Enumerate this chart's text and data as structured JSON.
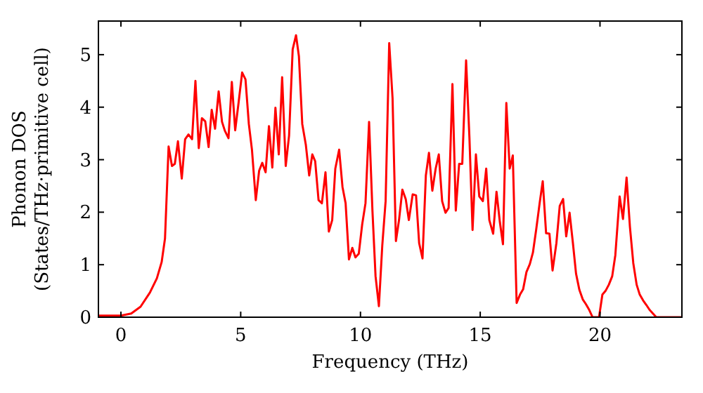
{
  "chart_data": {
    "type": "line",
    "xlabel": "Frequency (THz)",
    "ylabel": "Phonon DOS\n(States/THz·primitive cell)",
    "xlim": [
      -0.94,
      23.42
    ],
    "ylim": [
      0,
      5.64
    ],
    "xticks": [
      0,
      5,
      10,
      15,
      20
    ],
    "yticks": [
      0,
      1,
      2,
      3,
      4,
      5
    ],
    "grid": false,
    "marker": "none",
    "line_style": "solid",
    "series": [
      {
        "color": "#ff0000",
        "x": [
          -0.94,
          0,
          0.43,
          0.82,
          1.21,
          1.5,
          1.7,
          1.84,
          1.99,
          2.13,
          2.25,
          2.38,
          2.54,
          2.68,
          2.82,
          2.97,
          3.11,
          3.25,
          3.38,
          3.52,
          3.66,
          3.79,
          3.93,
          4.08,
          4.22,
          4.34,
          4.49,
          4.63,
          4.77,
          4.91,
          5.06,
          5.2,
          5.34,
          5.47,
          5.63,
          5.77,
          5.9,
          6.04,
          6.18,
          6.32,
          6.45,
          6.59,
          6.73,
          6.88,
          7.02,
          7.17,
          7.31,
          7.43,
          7.57,
          7.72,
          7.86,
          7.99,
          8.11,
          8.25,
          8.39,
          8.54,
          8.68,
          8.82,
          8.95,
          9.11,
          9.25,
          9.38,
          9.52,
          9.66,
          9.79,
          9.93,
          10.07,
          10.21,
          10.36,
          10.5,
          10.63,
          10.77,
          10.91,
          11.05,
          11.2,
          11.34,
          11.48,
          11.61,
          11.75,
          11.89,
          12.02,
          12.18,
          12.32,
          12.45,
          12.59,
          12.73,
          12.86,
          13.0,
          13.14,
          13.27,
          13.41,
          13.55,
          13.68,
          13.84,
          13.98,
          14.12,
          14.25,
          14.41,
          14.55,
          14.68,
          14.82,
          14.96,
          15.11,
          15.25,
          15.38,
          15.54,
          15.68,
          15.82,
          15.95,
          16.09,
          16.23,
          16.36,
          16.52,
          16.66,
          16.79,
          16.93,
          17.07,
          17.2,
          17.34,
          17.48,
          17.61,
          17.75,
          17.89,
          18.02,
          18.18,
          18.32,
          18.46,
          18.59,
          18.73,
          18.87,
          19.0,
          19.14,
          19.28,
          19.41,
          19.55,
          19.69,
          19.96,
          20.1,
          20.23,
          20.37,
          20.51,
          20.64,
          20.82,
          20.96,
          21.11,
          21.25,
          21.39,
          21.53,
          21.66,
          21.8,
          21.94,
          22.07,
          22.21,
          22.35,
          23.42
        ],
        "values": [
          0.03,
          0.03,
          0.07,
          0.2,
          0.47,
          0.74,
          1.05,
          1.5,
          3.25,
          2.88,
          2.92,
          3.35,
          2.64,
          3.39,
          3.48,
          3.39,
          4.5,
          3.22,
          3.79,
          3.73,
          3.24,
          3.95,
          3.59,
          4.3,
          3.72,
          3.55,
          3.41,
          4.48,
          3.56,
          4.08,
          4.66,
          4.53,
          3.68,
          3.19,
          2.23,
          2.79,
          2.94,
          2.76,
          3.64,
          2.85,
          3.99,
          3.1,
          4.57,
          2.88,
          3.46,
          5.1,
          5.37,
          4.97,
          3.68,
          3.28,
          2.7,
          3.1,
          2.97,
          2.23,
          2.17,
          2.76,
          1.63,
          1.85,
          2.83,
          3.19,
          2.48,
          2.17,
          1.1,
          1.32,
          1.14,
          1.21,
          1.76,
          2.17,
          3.72,
          2.03,
          0.78,
          0.21,
          1.36,
          2.21,
          5.22,
          4.17,
          1.45,
          1.85,
          2.43,
          2.25,
          1.85,
          2.34,
          2.32,
          1.41,
          1.12,
          2.7,
          3.13,
          2.41,
          2.83,
          3.1,
          2.21,
          1.99,
          2.08,
          4.44,
          2.03,
          2.92,
          2.92,
          4.89,
          3.41,
          1.66,
          3.1,
          2.3,
          2.21,
          2.83,
          1.85,
          1.59,
          2.39,
          1.81,
          1.39,
          4.08,
          2.83,
          3.08,
          0.27,
          0.43,
          0.53,
          0.86,
          1.01,
          1.23,
          1.68,
          2.17,
          2.59,
          1.6,
          1.59,
          0.89,
          1.41,
          2.12,
          2.25,
          1.54,
          1.99,
          1.41,
          0.83,
          0.52,
          0.34,
          0.25,
          0.14,
          0,
          0,
          0.43,
          0.5,
          0.62,
          0.78,
          1.18,
          2.3,
          1.87,
          2.66,
          1.72,
          1.03,
          0.62,
          0.43,
          0.32,
          0.23,
          0.14,
          0.07,
          0,
          0
        ]
      }
    ]
  }
}
